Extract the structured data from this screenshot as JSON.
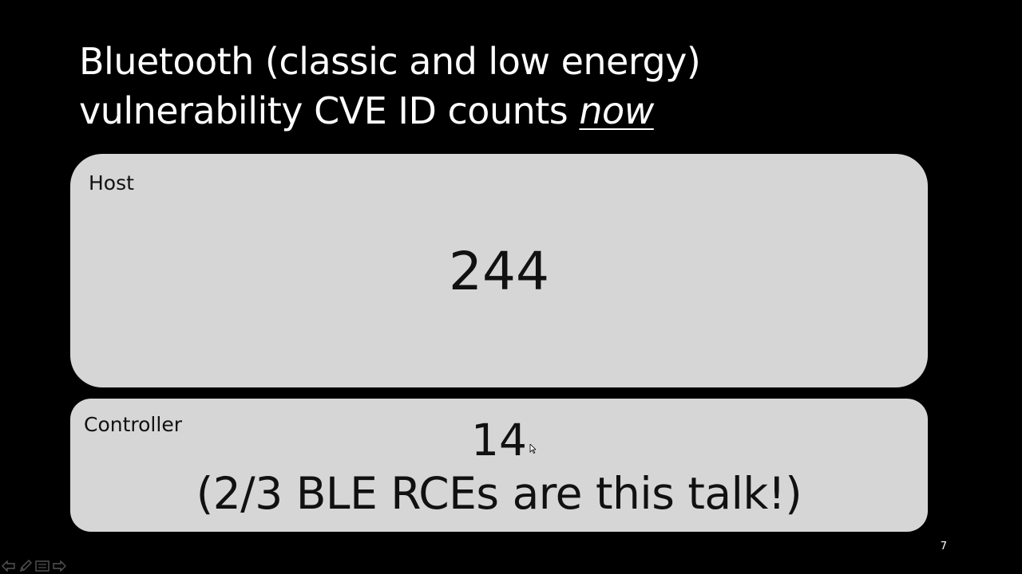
{
  "slide": {
    "title_line1": "Bluetooth (classic and low energy)",
    "title_line2_prefix": "vulnerability CVE ID counts ",
    "title_line2_emphasis": "now",
    "slide_number": "7"
  },
  "host_box": {
    "label": "Host",
    "count": "244"
  },
  "controller_box": {
    "label": "Controller",
    "count": "14",
    "note": "(2/3 BLE RCEs are this talk!)"
  },
  "nav_controls": {
    "icons": [
      "previous-slide-icon",
      "pen-icon",
      "slide-menu-icon",
      "next-slide-icon"
    ]
  },
  "colors": {
    "background": "#000000",
    "title_text": "#ffffff",
    "box_fill": "#d6d6d6",
    "box_text": "#111111"
  }
}
